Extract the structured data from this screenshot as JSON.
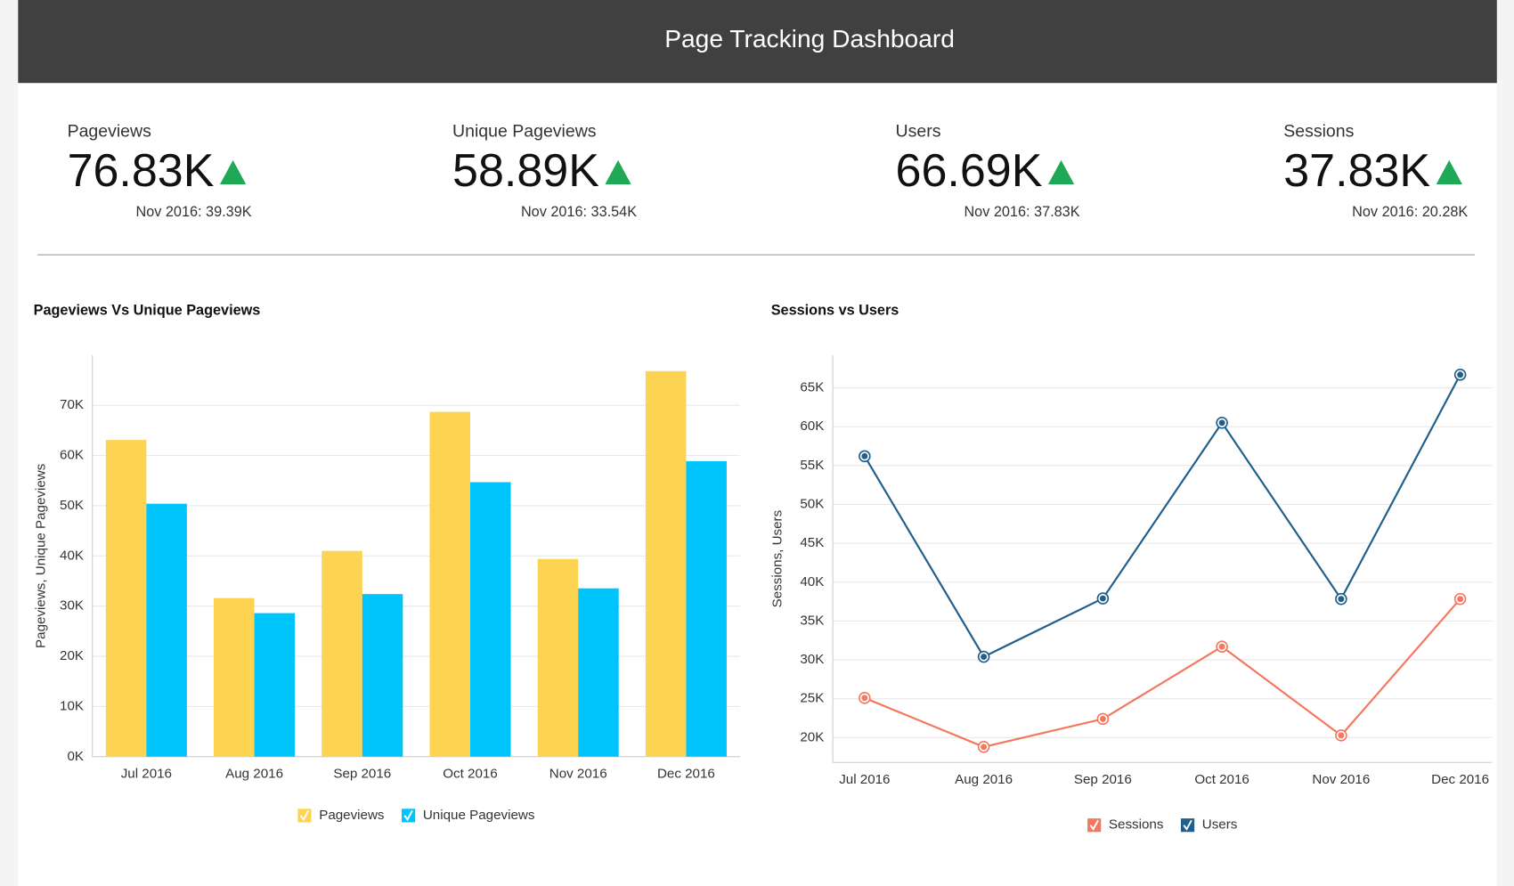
{
  "header": {
    "title": "Page Tracking Dashboard"
  },
  "kpis": [
    {
      "label": "Pageviews",
      "value": "76.83K",
      "comparison": "Nov 2016: 39.39K"
    },
    {
      "label": "Unique Pageviews",
      "value": "58.89K",
      "comparison": "Nov 2016: 33.54K"
    },
    {
      "label": "Users",
      "value": "66.69K",
      "comparison": "Nov 2016: 37.83K"
    },
    {
      "label": "Sessions",
      "value": "37.83K",
      "comparison": "Nov 2016: 20.28K"
    }
  ],
  "chart_data": [
    {
      "type": "bar",
      "title": "Pageviews Vs Unique Pageviews",
      "y_label": "Pageviews, Unique Pageviews",
      "categories": [
        "Jul 2016",
        "Aug 2016",
        "Sep 2016",
        "Oct 2016",
        "Nov 2016",
        "Dec 2016"
      ],
      "series": [
        {
          "name": "Pageviews",
          "color": "#fdd352",
          "values": [
            63100,
            31600,
            41000,
            68700,
            39390,
            76830
          ]
        },
        {
          "name": "Unique Pageviews",
          "color": "#00c5fd",
          "values": [
            50400,
            28600,
            32400,
            54700,
            33540,
            58890
          ]
        }
      ],
      "ylim": [
        0,
        80000
      ],
      "yticks": [
        {
          "value": 0,
          "label": "0K"
        },
        {
          "value": 10000,
          "label": "10K"
        },
        {
          "value": 20000,
          "label": "20K"
        },
        {
          "value": 30000,
          "label": "30K"
        },
        {
          "value": 40000,
          "label": "40K"
        },
        {
          "value": 50000,
          "label": "50K"
        },
        {
          "value": 60000,
          "label": "60K"
        },
        {
          "value": 70000,
          "label": "70K"
        }
      ],
      "grid": true,
      "legend": "bottom"
    },
    {
      "type": "line",
      "title": "Sessions vs Users",
      "y_label": "Sessions, Users",
      "categories": [
        "Jul 2016",
        "Aug 2016",
        "Sep 2016",
        "Oct 2016",
        "Nov 2016",
        "Dec 2016"
      ],
      "series": [
        {
          "name": "Sessions",
          "color": "#f4775e",
          "values": [
            25100,
            18800,
            22400,
            31700,
            20280,
            37830
          ]
        },
        {
          "name": "Users",
          "color": "#1f5f8b",
          "values": [
            56200,
            30400,
            37900,
            60500,
            37830,
            66690
          ]
        }
      ],
      "ylim": [
        16800,
        69200
      ],
      "yticks": [
        {
          "value": 20000,
          "label": "20K"
        },
        {
          "value": 25000,
          "label": "25K"
        },
        {
          "value": 30000,
          "label": "30K"
        },
        {
          "value": 35000,
          "label": "35K"
        },
        {
          "value": 40000,
          "label": "40K"
        },
        {
          "value": 45000,
          "label": "45K"
        },
        {
          "value": 50000,
          "label": "50K"
        },
        {
          "value": 55000,
          "label": "55K"
        },
        {
          "value": 60000,
          "label": "60K"
        },
        {
          "value": 65000,
          "label": "65K"
        }
      ],
      "grid": true,
      "legend": "bottom"
    }
  ]
}
